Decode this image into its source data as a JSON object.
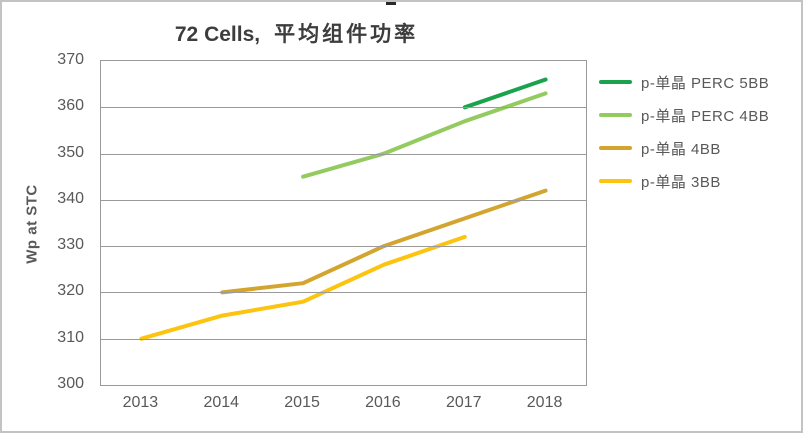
{
  "title": {
    "en": "72 Cells,",
    "cn": "平均组件功率"
  },
  "chart_data": {
    "type": "line",
    "title": "72 Cells, 平均组件功率",
    "ylabel": "Wp at STC",
    "xlabel": "",
    "x_categories": [
      "2013",
      "2014",
      "2015",
      "2016",
      "2017",
      "2018"
    ],
    "ylim": [
      300,
      370
    ],
    "ytick_step": 10,
    "grid": "horizontal",
    "legend_position": "right-outside",
    "line_width": 4,
    "gridline_color": "#9a9a9a",
    "axis_text_color": "#595959",
    "series": [
      {
        "name": "p-单晶  PERC 5BB",
        "color": "#1ba24d",
        "values": [
          null,
          null,
          null,
          null,
          360,
          366
        ]
      },
      {
        "name": "p-单晶  PERC 4BB",
        "color": "#93cb61",
        "values": [
          null,
          null,
          345,
          350,
          357,
          363
        ]
      },
      {
        "name": "p-单晶  4BB",
        "color": "#d3a52e",
        "values": [
          null,
          320,
          322,
          330,
          336,
          342
        ]
      },
      {
        "name": "p-单晶  3BB",
        "color": "#fcc30f",
        "values": [
          310,
          315,
          318,
          326,
          332,
          null
        ]
      }
    ]
  }
}
